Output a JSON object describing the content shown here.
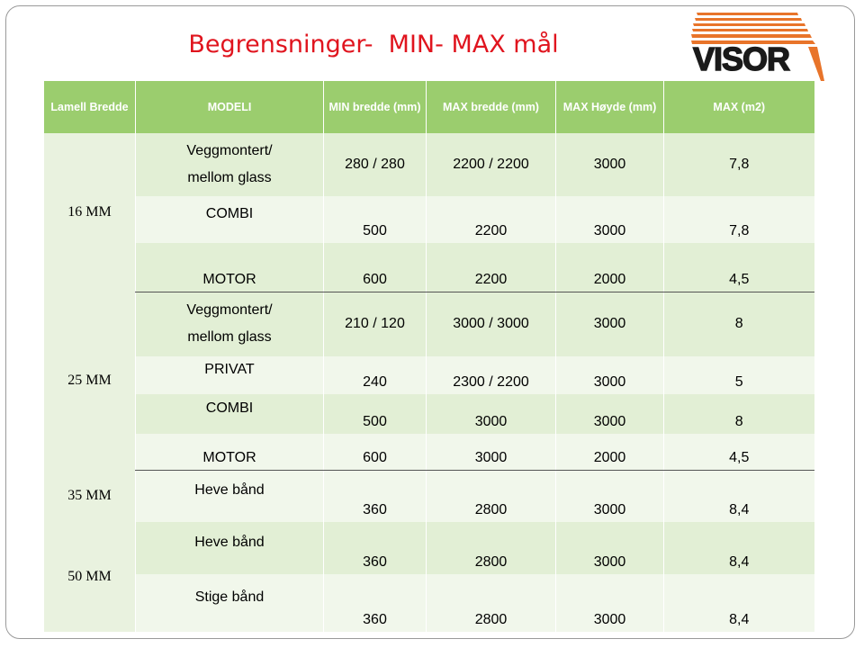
{
  "title": "Begrensninger-  MIN- MAX mål",
  "logo": {
    "text": "VISOR",
    "stripe_color": "#e8742a",
    "text_color": "#1a1a1a"
  },
  "colors": {
    "header": "#9bcd6e",
    "row_a": "#e2efd5",
    "row_b": "#f1f7eb",
    "title": "#e0141e"
  },
  "headers": [
    "Lamell Bredde",
    "MODELI",
    "MIN bredde (mm)",
    "MAX bredde (mm)",
    "MAX Høyde (mm)",
    "MAX (m2)"
  ],
  "groups": [
    {
      "lamell": "16 MM",
      "rows": [
        {
          "model": "Veggmontert/ mellom  glass",
          "min": "280 / 280",
          "max_w": "2200 / 2200",
          "max_h": "3000",
          "max_m2": "7,8"
        },
        {
          "model": "COMBI",
          "min": "500",
          "max_w": "2200",
          "max_h": "3000",
          "max_m2": "7,8"
        },
        {
          "model": "MOTOR",
          "min": "600",
          "max_w": "2200",
          "max_h": "2000",
          "max_m2": "4,5"
        }
      ]
    },
    {
      "lamell": "25 MM",
      "rows": [
        {
          "model": "Veggmontert/ mellom  glass",
          "min": "210 / 120",
          "max_w": "3000 / 3000",
          "max_h": "3000",
          "max_m2": "8"
        },
        {
          "model": "PRIVAT",
          "min": "240",
          "max_w": "2300 / 2200",
          "max_h": "3000",
          "max_m2": "5"
        },
        {
          "model": "COMBI",
          "min": "500",
          "max_w": "3000",
          "max_h": "3000",
          "max_m2": "8"
        },
        {
          "model": "MOTOR",
          "min": "600",
          "max_w": "3000",
          "max_h": "2000",
          "max_m2": "4,5"
        }
      ]
    },
    {
      "lamell": "35 MM",
      "rows": [
        {
          "model": "Heve bånd",
          "min": "360",
          "max_w": "2800",
          "max_h": "3000",
          "max_m2": "8,4"
        }
      ]
    },
    {
      "lamell": "50 MM",
      "rows": [
        {
          "model": "Heve bånd",
          "min": "360",
          "max_w": "2800",
          "max_h": "3000",
          "max_m2": "8,4"
        },
        {
          "model": "Stige bånd",
          "min": "360",
          "max_w": "2800",
          "max_h": "3000",
          "max_m2": "8,4"
        }
      ]
    }
  ]
}
